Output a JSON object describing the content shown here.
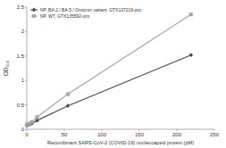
{
  "chart_data": {
    "type": "line",
    "x_label": "Recombinant SARS-CoV-2 (COVID-19) nucleocapsid protein (pM)",
    "y_label": "OD₄₅₀",
    "x": [
      0,
      3.4,
      6.8,
      13.7,
      54.7,
      218.8
    ],
    "series": [
      {
        "name": "NP, BA.2 / BA.5 / Omicron variant, GTX137219-pro",
        "color": "#4d4d4d",
        "marker": "diamond",
        "values": [
          0.08,
          0.1,
          0.12,
          0.18,
          0.48,
          1.52
        ]
      },
      {
        "name": "NP, WT, GTX135592-pro",
        "color": "#a6a6a6",
        "marker": "square",
        "values": [
          0.1,
          0.12,
          0.15,
          0.25,
          0.72,
          2.35
        ]
      }
    ],
    "xlim": [
      0,
      250
    ],
    "xticks": [
      0,
      50,
      100,
      150,
      200,
      250
    ],
    "ylim": [
      0,
      2.5
    ],
    "yticks": [
      0,
      0.5,
      1,
      1.5,
      2,
      2.5
    ],
    "legend": "top-left",
    "grid": false
  }
}
